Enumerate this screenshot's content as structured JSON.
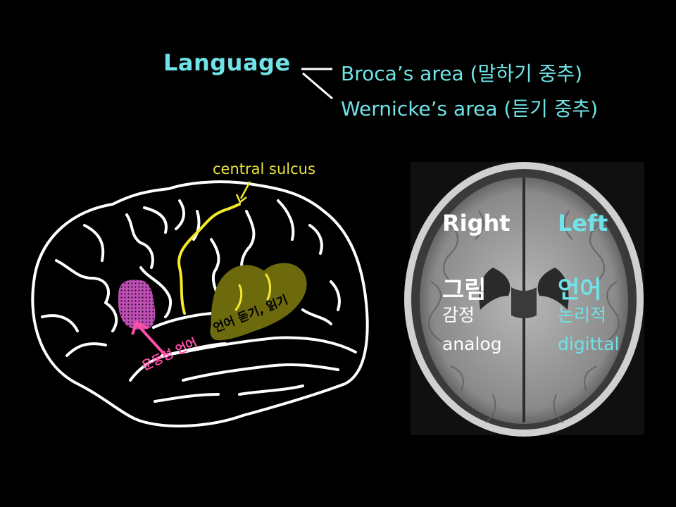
{
  "header": {
    "title": "Language",
    "broca": "Broca’s area (말하기 중추)",
    "wernicke": "Wernicke’s area (듣기 중추)"
  },
  "brain_diagram": {
    "central_sulcus_label": "central sulcus",
    "wernicke_label": "언어 듣기, 읽기",
    "broca_label": "운동성 언어",
    "colors": {
      "sulcus": "#f2ea2a",
      "wernicke_region": "#6d6a0e",
      "broca_region": "#c04fb5",
      "broca_label": "#ff4fa8"
    }
  },
  "mri": {
    "right": {
      "heading": "Right",
      "main": "그림",
      "sub1": "감정",
      "sub2": "analog"
    },
    "left": {
      "heading": "Left",
      "main": "언어",
      "sub1": "논리적",
      "sub2": "digittal"
    }
  },
  "colors": {
    "background": "#000000",
    "accent": "#6fe3e8",
    "text": "#ffffff"
  }
}
